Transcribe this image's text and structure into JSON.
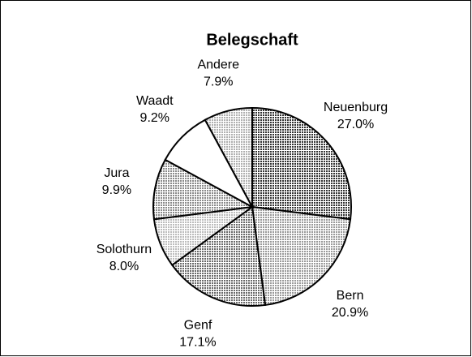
{
  "chart_data": {
    "type": "pie",
    "title": "Belegschaft",
    "categories": [
      "Neuenburg",
      "Bern",
      "Genf",
      "Solothurn",
      "Jura",
      "Waadt",
      "Andere"
    ],
    "values": [
      27.0,
      20.9,
      17.1,
      8.0,
      9.9,
      9.2,
      7.9
    ],
    "value_labels": [
      "27.0%",
      "20.9%",
      "17.1%",
      "8.0%",
      "9.9%",
      "9.2%",
      "7.9%"
    ],
    "colors": [
      "#333333",
      "#9a9a9a",
      "#6a6a6a",
      "#bcbcbc",
      "#8a8a8a",
      "#ffffff",
      "#b0b0b0"
    ]
  }
}
